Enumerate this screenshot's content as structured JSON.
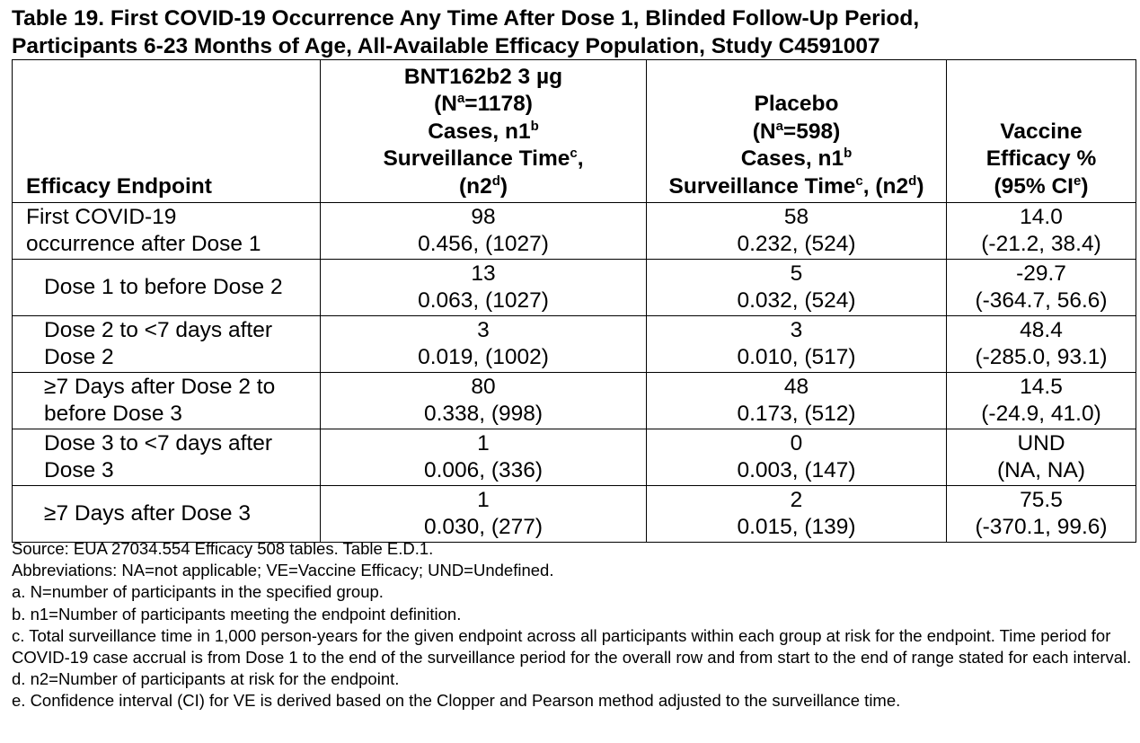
{
  "title": {
    "line1": "Table 19. First COVID-19 Occurrence Any Time After Dose 1, Blinded Follow-Up Period,",
    "line2": "Participants 6-23 Months of Age, All-Available Efficacy Population, Study C4591007"
  },
  "headers": {
    "endpoint": "Efficacy Endpoint",
    "vaccine": {
      "line1": "BNT162b2 3 µg",
      "line2_pre": "(N",
      "line2_sup": "a",
      "line2_post": "=1178)",
      "line3_pre": "Cases, n1",
      "line3_sup": "b",
      "line4_pre": "Surveillance Time",
      "line4_sup": "c",
      "line4_post": ",",
      "line5_pre": "(n2",
      "line5_sup": "d",
      "line5_post": ")"
    },
    "placebo": {
      "line1": "Placebo",
      "line2_pre": "(N",
      "line2_sup": "a",
      "line2_post": "=598)",
      "line3_pre": "Cases, n1",
      "line3_sup": "b",
      "line4_pre": "Surveillance Time",
      "line4_sup": "c",
      "line4_mid": ", (n2",
      "line4_sup2": "d",
      "line4_post": ")"
    },
    "efficacy": {
      "line1": "Vaccine",
      "line2": "Efficacy %",
      "line3_pre": "(95% CI",
      "line3_sup": "e",
      "line3_post": ")"
    }
  },
  "rows": [
    {
      "endpoint": [
        "First COVID-19",
        "occurrence after Dose 1"
      ],
      "vaccine": [
        "98",
        "0.456, (1027)"
      ],
      "placebo": [
        "58",
        "0.232, (524)"
      ],
      "ve": [
        "14.0",
        "(-21.2, 38.4)"
      ]
    },
    {
      "endpoint": [
        "Dose 1 to before Dose 2"
      ],
      "vaccine": [
        "13",
        "0.063, (1027)"
      ],
      "placebo": [
        "5",
        "0.032, (524)"
      ],
      "ve": [
        "-29.7",
        "(-364.7, 56.6)"
      ]
    },
    {
      "endpoint": [
        "Dose 2 to <7 days after",
        "Dose 2"
      ],
      "vaccine": [
        "3",
        "0.019, (1002)"
      ],
      "placebo": [
        "3",
        "0.010, (517)"
      ],
      "ve": [
        "48.4",
        "(-285.0, 93.1)"
      ]
    },
    {
      "endpoint": [
        "≥7 Days after Dose 2 to",
        "before Dose 3"
      ],
      "vaccine": [
        "80",
        "0.338, (998)"
      ],
      "placebo": [
        "48",
        "0.173, (512)"
      ],
      "ve": [
        "14.5",
        "(-24.9, 41.0)"
      ]
    },
    {
      "endpoint": [
        "Dose 3 to <7 days after",
        "Dose 3"
      ],
      "vaccine": [
        "1",
        "0.006, (336)"
      ],
      "placebo": [
        "0",
        "0.003, (147)"
      ],
      "ve": [
        "UND",
        "(NA, NA)"
      ]
    },
    {
      "endpoint": [
        "≥7 Days after Dose 3"
      ],
      "vaccine": [
        "1",
        "0.030, (277)"
      ],
      "placebo": [
        "2",
        "0.015, (139)"
      ],
      "ve": [
        "75.5",
        "(-370.1, 99.6)"
      ]
    }
  ],
  "footnotes": {
    "source": "Source: EUA 27034.554 Efficacy 508 tables. Table E.D.1.",
    "abbreviations": "Abbreviations: NA=not applicable; VE=Vaccine Efficacy; UND=Undefined.",
    "a": "a. N=number of participants in the specified group.",
    "b": "b. n1=Number of participants meeting the endpoint definition.",
    "c": "c. Total surveillance time in 1,000 person-years for the given endpoint across all participants within each group at risk for the endpoint. Time period for COVID-19 case accrual is from Dose 1 to the end of the surveillance period for the overall row and from start to the end of range stated for each interval.",
    "d": "d. n2=Number of participants at risk for the endpoint.",
    "e": "e. Confidence interval (CI) for VE is derived based on the Clopper and Pearson method adjusted to the surveillance time."
  }
}
